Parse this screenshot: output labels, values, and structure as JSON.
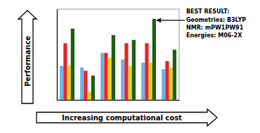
{
  "chart_data": {
    "type": "bar",
    "categories": [
      null,
      null,
      null,
      null,
      null,
      null
    ],
    "series": [
      {
        "color": "#6ab4e8",
        "values": [
          0.42,
          0.4,
          0.58,
          0.5,
          0.46,
          0.38
        ]
      },
      {
        "color": "#ee2222",
        "values": [
          0.7,
          0.36,
          0.58,
          0.7,
          0.7,
          0.48
        ]
      },
      {
        "color": "#f0d020",
        "values": [
          0.42,
          0.1,
          0.52,
          0.42,
          0.46,
          0.4
        ]
      },
      {
        "color": "#1a5e10",
        "values": [
          0.88,
          0.3,
          0.8,
          0.74,
          1.0,
          0.62
        ]
      }
    ],
    "ylim": [
      0,
      1.12
    ],
    "yticks": [],
    "grid": false,
    "tick_labels": false,
    "x_label": "Increasing computational cost",
    "y_label": "Performance",
    "annotations": [
      "BEST RESULT:\nGeometries: B3LYP\nNMR: mPW1PW91\nEnergies: M06-2X"
    ]
  }
}
